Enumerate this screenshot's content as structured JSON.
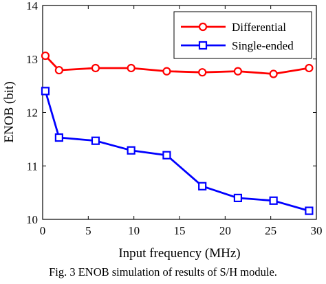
{
  "chart_data": {
    "type": "line",
    "xlabel": "Input frequency (MHz)",
    "ylabel": "ENOB (bit)",
    "xlim": [
      0,
      30
    ],
    "ylim": [
      10,
      14
    ],
    "xticks": [
      0,
      5,
      10,
      15,
      20,
      25,
      30
    ],
    "yticks": [
      10,
      11,
      12,
      13,
      14
    ],
    "grid": false,
    "legend_position": "top-right",
    "series": [
      {
        "name": "Differential",
        "color": "#ff0000",
        "marker": "circle",
        "x": [
          0.3,
          1.8,
          5.8,
          9.7,
          13.6,
          17.5,
          21.4,
          25.3,
          29.2
        ],
        "y": [
          13.06,
          12.79,
          12.83,
          12.83,
          12.77,
          12.75,
          12.77,
          12.72,
          12.83
        ]
      },
      {
        "name": "Single-ended",
        "color": "#0000ff",
        "marker": "square",
        "x": [
          0.3,
          1.8,
          5.8,
          9.7,
          13.6,
          17.5,
          21.4,
          25.3,
          29.2
        ],
        "y": [
          12.4,
          11.53,
          11.47,
          11.29,
          11.2,
          10.62,
          10.4,
          10.35,
          10.16
        ]
      }
    ]
  },
  "caption": "Fig. 3 ENOB simulation of results of S/H module."
}
